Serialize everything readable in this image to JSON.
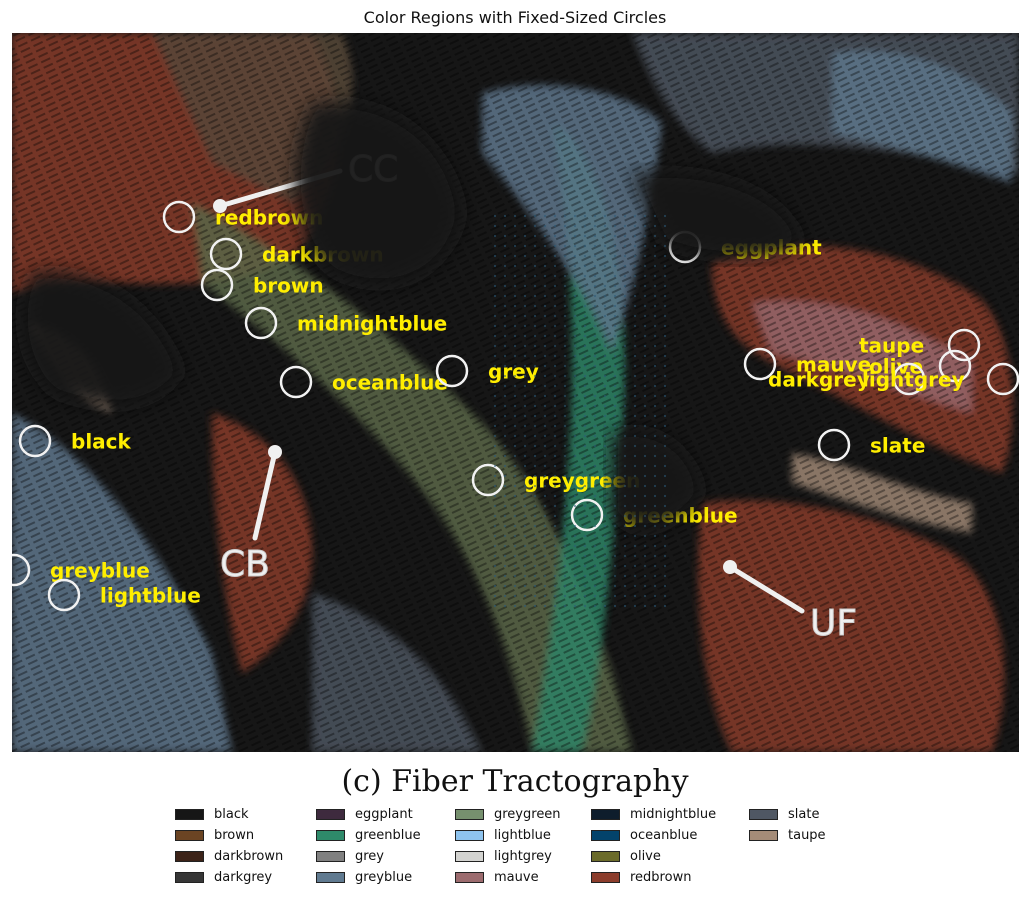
{
  "title": "Color Regions with Fixed-Sized Circles",
  "subtitle": "(c) Fiber Tractography",
  "tract_labels": [
    {
      "id": "cc",
      "text": "CC"
    },
    {
      "id": "cb",
      "text": "CB"
    },
    {
      "id": "uf",
      "text": "UF"
    }
  ],
  "markers": [
    {
      "label": "redbrown"
    },
    {
      "label": "darkbrown"
    },
    {
      "label": "brown"
    },
    {
      "label": "midnightblue"
    },
    {
      "label": "oceanblue"
    },
    {
      "label": "grey"
    },
    {
      "label": "black"
    },
    {
      "label": "greygreen"
    },
    {
      "label": "greenblue"
    },
    {
      "label": "greyblue"
    },
    {
      "label": "lightblue"
    },
    {
      "label": "eggplant"
    },
    {
      "label": "taupe"
    },
    {
      "label": "mauve"
    },
    {
      "label": "olive"
    },
    {
      "label": "darkgrey"
    },
    {
      "label": "lightgrey"
    },
    {
      "label": "slate"
    }
  ],
  "legend": [
    {
      "name": "black",
      "color": "#161616"
    },
    {
      "name": "brown",
      "color": "#6b4423"
    },
    {
      "name": "darkbrown",
      "color": "#3c2318"
    },
    {
      "name": "darkgrey",
      "color": "#363636"
    },
    {
      "name": "eggplant",
      "color": "#3e2a3e"
    },
    {
      "name": "greenblue",
      "color": "#2e8a6a"
    },
    {
      "name": "grey",
      "color": "#808080"
    },
    {
      "name": "greyblue",
      "color": "#607a90"
    },
    {
      "name": "greygreen",
      "color": "#76906e"
    },
    {
      "name": "lightblue",
      "color": "#8ec3ee"
    },
    {
      "name": "lightgrey",
      "color": "#d3d3d0"
    },
    {
      "name": "mauve",
      "color": "#9c6b6e"
    },
    {
      "name": "midnightblue",
      "color": "#0e1d2c"
    },
    {
      "name": "oceanblue",
      "color": "#03436b"
    },
    {
      "name": "olive",
      "color": "#6b6b2a"
    },
    {
      "name": "redbrown",
      "color": "#8c3d2c"
    },
    {
      "name": "slate",
      "color": "#4f5763"
    },
    {
      "name": "taupe",
      "color": "#a58c78"
    }
  ],
  "colors": {
    "marker_label": "#ffee00",
    "marker_circle": "#f2f2f2",
    "tract_label": "#f0f0f0",
    "background": "#161616"
  }
}
